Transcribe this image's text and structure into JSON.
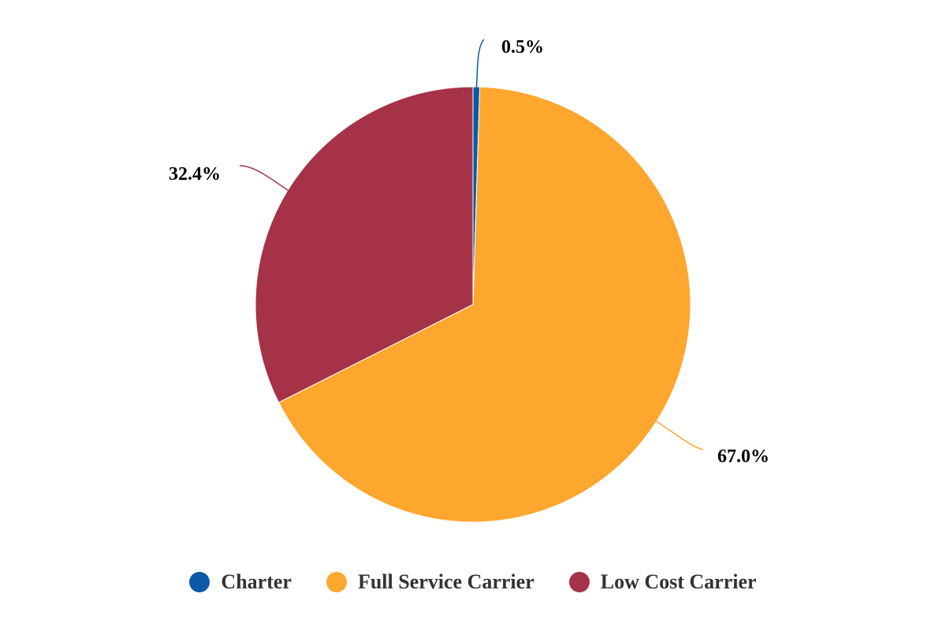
{
  "chart_data": {
    "type": "pie",
    "slices": [
      {
        "name": "Charter",
        "value": 0.5,
        "label": "0.5%",
        "color": "#0b5aa8"
      },
      {
        "name": "Full Service Carrier",
        "value": 67.0,
        "label": "67.0%",
        "color": "#fda72f"
      },
      {
        "name": "Low Cost Carrier",
        "value": 32.4,
        "label": "32.4%",
        "color": "#a63247"
      }
    ],
    "legend": {
      "position": "bottom"
    }
  }
}
